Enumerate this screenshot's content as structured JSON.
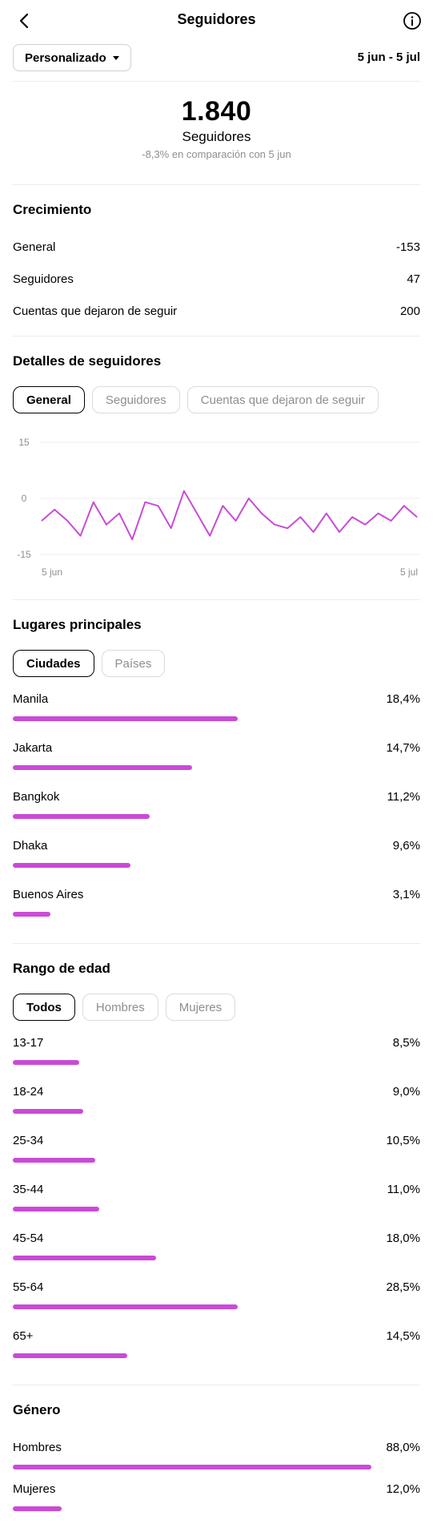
{
  "header": {
    "title": "Seguidores"
  },
  "filter": {
    "dropdown_label": "Personalizado",
    "date_range": "5 jun - 5 jul"
  },
  "summary": {
    "total": "1.840",
    "label": "Seguidores",
    "comparison": "-8,3% en comparación con 5 jun"
  },
  "growth": {
    "title": "Crecimiento",
    "rows": [
      {
        "label": "General",
        "value": "-153"
      },
      {
        "label": "Seguidores",
        "value": "47"
      },
      {
        "label": "Cuentas que dejaron de seguir",
        "value": "200"
      }
    ]
  },
  "details": {
    "title": "Detalles de seguidores",
    "tabs": [
      {
        "label": "General",
        "active": true
      },
      {
        "label": "Seguidores",
        "active": false
      },
      {
        "label": "Cuentas que dejaron de seguir",
        "active": false
      }
    ]
  },
  "chart_data": {
    "type": "line",
    "x_labels": [
      "5 jun",
      "5 jul"
    ],
    "y_ticks": [
      "15",
      "0",
      "-15"
    ],
    "ylim": [
      -15,
      15
    ],
    "grid": true,
    "color": "#c94bd6",
    "series": [
      {
        "values": [
          -6,
          -3,
          -6,
          -10,
          -1,
          -7,
          -4,
          -11,
          -1,
          -2,
          -8,
          2,
          -4,
          -10,
          -2,
          -6,
          0,
          -4,
          -7,
          -8,
          -5,
          -9,
          -4,
          -9,
          -5,
          -7,
          -4,
          -6,
          -2,
          -5
        ]
      }
    ]
  },
  "places": {
    "title": "Lugares principales",
    "tabs": [
      {
        "label": "Ciudades",
        "active": true
      },
      {
        "label": "Países",
        "active": false
      }
    ],
    "items": [
      {
        "label": "Manila",
        "pct_label": "18,4%",
        "share": 0.552
      },
      {
        "label": "Jakarta",
        "pct_label": "14,7%",
        "share": 0.441
      },
      {
        "label": "Bangkok",
        "pct_label": "11,2%",
        "share": 0.336
      },
      {
        "label": "Dhaka",
        "pct_label": "9,6%",
        "share": 0.288
      },
      {
        "label": "Buenos Aires",
        "pct_label": "3,1%",
        "share": 0.093
      }
    ]
  },
  "age": {
    "title": "Rango de edad",
    "tabs": [
      {
        "label": "Todos",
        "active": true
      },
      {
        "label": "Hombres",
        "active": false
      },
      {
        "label": "Mujeres",
        "active": false
      }
    ],
    "items": [
      {
        "label": "13-17",
        "pct_label": "8,5%",
        "share": 0.163
      },
      {
        "label": "18-24",
        "pct_label": "9,0%",
        "share": 0.173
      },
      {
        "label": "25-34",
        "pct_label": "10,5%",
        "share": 0.203
      },
      {
        "label": "35-44",
        "pct_label": "11,0%",
        "share": 0.213
      },
      {
        "label": "45-54",
        "pct_label": "18,0%",
        "share": 0.351
      },
      {
        "label": "55-64",
        "pct_label": "28,5%",
        "share": 0.552
      },
      {
        "label": "65+",
        "pct_label": "14,5%",
        "share": 0.281
      }
    ]
  },
  "gender": {
    "title": "Género",
    "items": [
      {
        "label": "Hombres",
        "pct_label": "88,0%",
        "share": 0.88
      },
      {
        "label": "Mujeres",
        "pct_label": "12,0%",
        "share": 0.12
      }
    ]
  }
}
